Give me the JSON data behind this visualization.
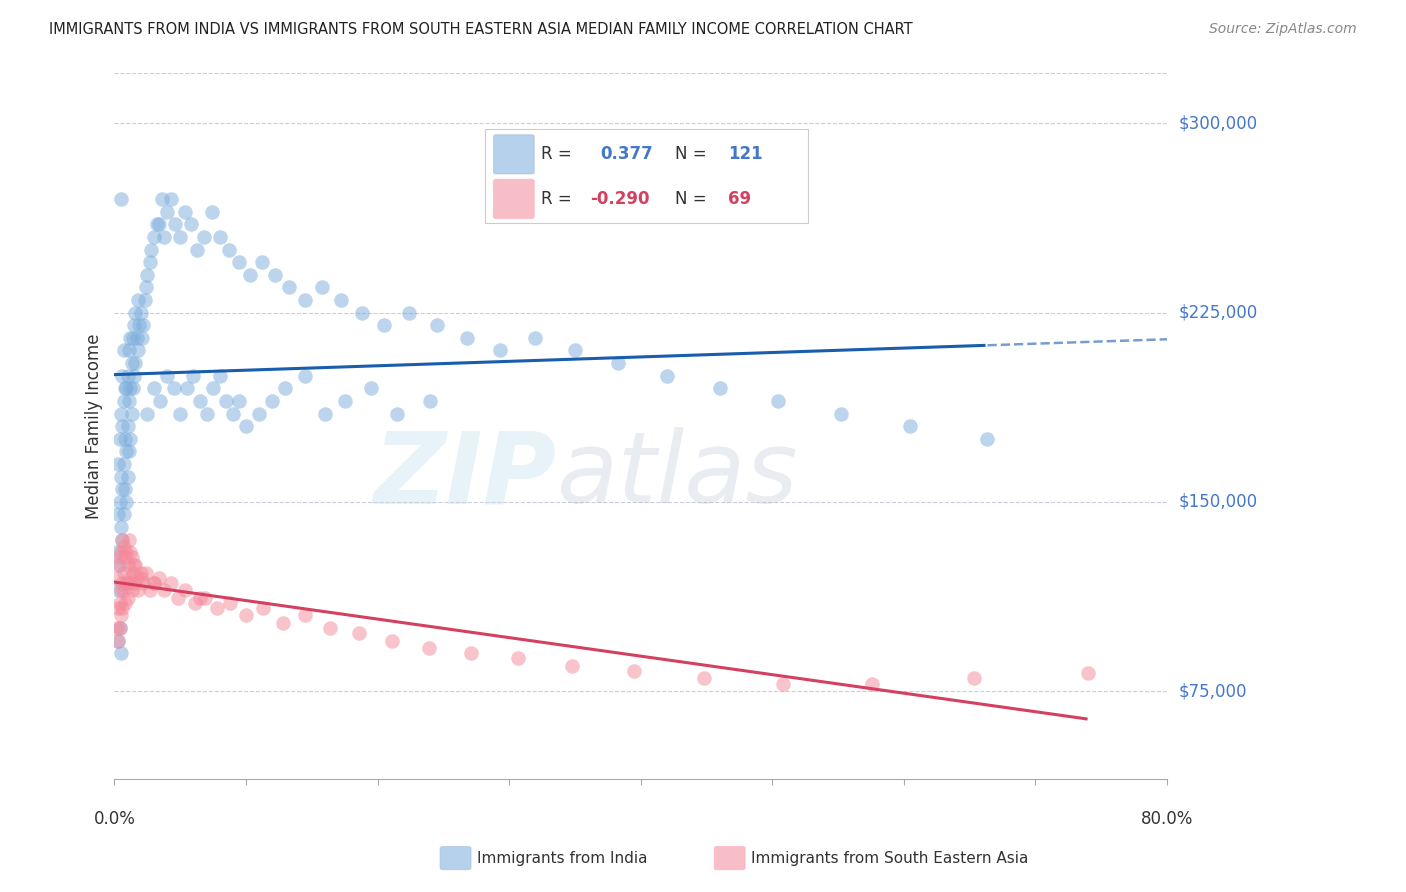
{
  "title": "IMMIGRANTS FROM INDIA VS IMMIGRANTS FROM SOUTH EASTERN ASIA MEDIAN FAMILY INCOME CORRELATION CHART",
  "source": "Source: ZipAtlas.com",
  "ylabel": "Median Family Income",
  "ytick_labels": [
    "$75,000",
    "$150,000",
    "$225,000",
    "$300,000"
  ],
  "ytick_values": [
    75000,
    150000,
    225000,
    300000
  ],
  "xlim": [
    0.0,
    0.8
  ],
  "ylim": [
    40000,
    320000
  ],
  "legend_label_blue": "Immigrants from India",
  "legend_label_pink": "Immigrants from South Eastern Asia",
  "blue_color": "#7AACDC",
  "pink_color": "#F4899A",
  "blue_line_color": "#1A5DAD",
  "pink_line_color": "#D44060",
  "axis_label_color": "#4477CC",
  "title_color": "#222222",
  "watermark_zip": "ZIP",
  "watermark_atlas": "atlas",
  "grid_color": "#CCCCDD",
  "blue_r": "0.377",
  "blue_n": "121",
  "pink_r": "-0.290",
  "pink_n": "69",
  "blue_scatter_x": [
    0.002,
    0.003,
    0.003,
    0.003,
    0.003,
    0.004,
    0.004,
    0.004,
    0.004,
    0.005,
    0.005,
    0.005,
    0.005,
    0.006,
    0.006,
    0.006,
    0.006,
    0.007,
    0.007,
    0.007,
    0.007,
    0.008,
    0.008,
    0.008,
    0.009,
    0.009,
    0.009,
    0.01,
    0.01,
    0.01,
    0.011,
    0.011,
    0.011,
    0.012,
    0.012,
    0.012,
    0.013,
    0.013,
    0.014,
    0.014,
    0.015,
    0.015,
    0.016,
    0.016,
    0.017,
    0.018,
    0.018,
    0.019,
    0.02,
    0.021,
    0.022,
    0.023,
    0.024,
    0.025,
    0.027,
    0.028,
    0.03,
    0.032,
    0.034,
    0.036,
    0.038,
    0.04,
    0.043,
    0.046,
    0.05,
    0.054,
    0.058,
    0.063,
    0.068,
    0.074,
    0.08,
    0.087,
    0.095,
    0.103,
    0.112,
    0.122,
    0.133,
    0.145,
    0.158,
    0.172,
    0.188,
    0.205,
    0.224,
    0.245,
    0.268,
    0.293,
    0.32,
    0.35,
    0.383,
    0.42,
    0.46,
    0.504,
    0.552,
    0.605,
    0.663,
    0.025,
    0.03,
    0.035,
    0.04,
    0.045,
    0.05,
    0.055,
    0.06,
    0.065,
    0.07,
    0.075,
    0.08,
    0.085,
    0.09,
    0.095,
    0.1,
    0.11,
    0.12,
    0.13,
    0.145,
    0.16,
    0.175,
    0.195,
    0.215,
    0.24,
    0.005
  ],
  "blue_scatter_y": [
    130000,
    115000,
    145000,
    165000,
    95000,
    125000,
    150000,
    175000,
    100000,
    140000,
    160000,
    185000,
    90000,
    135000,
    155000,
    180000,
    200000,
    145000,
    165000,
    190000,
    210000,
    155000,
    175000,
    195000,
    150000,
    170000,
    195000,
    160000,
    180000,
    200000,
    170000,
    190000,
    210000,
    175000,
    195000,
    215000,
    185000,
    205000,
    195000,
    215000,
    200000,
    220000,
    205000,
    225000,
    215000,
    210000,
    230000,
    220000,
    225000,
    215000,
    220000,
    230000,
    235000,
    240000,
    245000,
    250000,
    255000,
    260000,
    260000,
    270000,
    255000,
    265000,
    270000,
    260000,
    255000,
    265000,
    260000,
    250000,
    255000,
    265000,
    255000,
    250000,
    245000,
    240000,
    245000,
    240000,
    235000,
    230000,
    235000,
    230000,
    225000,
    220000,
    225000,
    220000,
    215000,
    210000,
    215000,
    210000,
    205000,
    200000,
    195000,
    190000,
    185000,
    180000,
    175000,
    185000,
    195000,
    190000,
    200000,
    195000,
    185000,
    195000,
    200000,
    190000,
    185000,
    195000,
    200000,
    190000,
    185000,
    190000,
    180000,
    185000,
    190000,
    195000,
    200000,
    185000,
    190000,
    195000,
    185000,
    190000,
    270000
  ],
  "pink_scatter_x": [
    0.002,
    0.002,
    0.003,
    0.003,
    0.003,
    0.004,
    0.004,
    0.004,
    0.005,
    0.005,
    0.005,
    0.006,
    0.006,
    0.006,
    0.007,
    0.007,
    0.007,
    0.008,
    0.008,
    0.009,
    0.009,
    0.01,
    0.01,
    0.011,
    0.011,
    0.012,
    0.012,
    0.013,
    0.013,
    0.014,
    0.015,
    0.016,
    0.017,
    0.018,
    0.02,
    0.022,
    0.024,
    0.027,
    0.03,
    0.034,
    0.038,
    0.043,
    0.048,
    0.054,
    0.061,
    0.069,
    0.078,
    0.088,
    0.1,
    0.113,
    0.128,
    0.145,
    0.164,
    0.186,
    0.211,
    0.239,
    0.271,
    0.307,
    0.348,
    0.395,
    0.448,
    0.508,
    0.576,
    0.653,
    0.74,
    0.015,
    0.02,
    0.03,
    0.065
  ],
  "pink_scatter_y": [
    100000,
    120000,
    108000,
    125000,
    95000,
    110000,
    128000,
    100000,
    115000,
    130000,
    105000,
    118000,
    135000,
    108000,
    122000,
    115000,
    132000,
    110000,
    128000,
    118000,
    130000,
    112000,
    125000,
    118000,
    135000,
    120000,
    130000,
    115000,
    128000,
    122000,
    118000,
    125000,
    120000,
    115000,
    120000,
    118000,
    122000,
    115000,
    118000,
    120000,
    115000,
    118000,
    112000,
    115000,
    110000,
    112000,
    108000,
    110000,
    105000,
    108000,
    102000,
    105000,
    100000,
    98000,
    95000,
    92000,
    90000,
    88000,
    85000,
    83000,
    80000,
    78000,
    78000,
    80000,
    82000,
    125000,
    122000,
    118000,
    112000
  ]
}
